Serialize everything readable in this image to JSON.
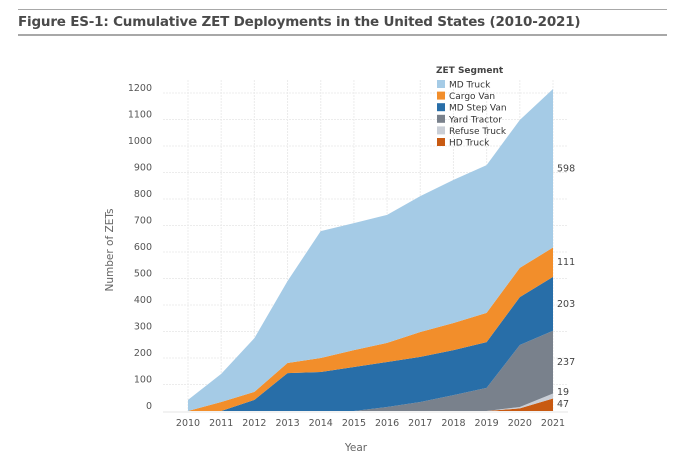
{
  "figure": {
    "title": "Figure ES-1: Cumulative ZET Deployments in the United States (2010-2021)"
  },
  "chart_data": {
    "type": "area",
    "stacked": true,
    "title": "Figure ES-1: Cumulative ZET Deployments in the United States (2010-2021)",
    "xlabel": "Year",
    "ylabel": "Number of ZETs",
    "x": [
      "2010",
      "2011",
      "2012",
      "2013",
      "2014",
      "2015",
      "2016",
      "2017",
      "2018",
      "2019",
      "2020",
      "2021"
    ],
    "ylim": [
      0,
      1250
    ],
    "yticks": [
      0,
      100,
      200,
      300,
      400,
      500,
      600,
      700,
      800,
      900,
      1000,
      1100,
      1200
    ],
    "grid": true,
    "legend": {
      "title": "ZET Segment",
      "position": "top-right"
    },
    "series": [
      {
        "name": "HD Truck",
        "color": "#c85a12",
        "values": [
          0,
          0,
          0,
          0,
          0,
          0,
          0,
          0,
          0,
          0,
          10,
          47
        ]
      },
      {
        "name": "Refuse Truck",
        "color": "#c9ced6",
        "values": [
          0,
          0,
          0,
          0,
          0,
          0,
          0,
          0,
          0,
          0,
          5,
          19
        ]
      },
      {
        "name": "Yard Tractor",
        "color": "#79818c",
        "values": [
          0,
          0,
          0,
          0,
          0,
          0,
          15,
          34,
          60,
          87,
          234,
          237
        ]
      },
      {
        "name": "MD Step Van",
        "color": "#286ea8",
        "values": [
          0,
          0,
          42,
          143,
          147,
          166,
          170,
          170,
          170,
          173,
          181,
          203
        ]
      },
      {
        "name": "Cargo Van",
        "color": "#f28e2b",
        "values": [
          0,
          34,
          30,
          38,
          53,
          64,
          72,
          94,
          102,
          110,
          110,
          111
        ]
      },
      {
        "name": "MD Truck",
        "color": "#a5cbe6",
        "values": [
          42,
          106,
          203,
          309,
          479,
          479,
          483,
          513,
          540,
          558,
          558,
          598
        ]
      }
    ],
    "legend_order": [
      "MD Truck",
      "Cargo Van",
      "MD Step Van",
      "Yard Tractor",
      "Refuse Truck",
      "HD Truck"
    ],
    "end_labels": [
      {
        "series": "MD Truck",
        "text": "598"
      },
      {
        "series": "Cargo Van",
        "text": "111"
      },
      {
        "series": "MD Step Van",
        "text": "203"
      },
      {
        "series": "Yard Tractor",
        "text": "237"
      },
      {
        "series": "Refuse Truck",
        "text": "19"
      },
      {
        "series": "HD Truck",
        "text": "47"
      }
    ]
  }
}
